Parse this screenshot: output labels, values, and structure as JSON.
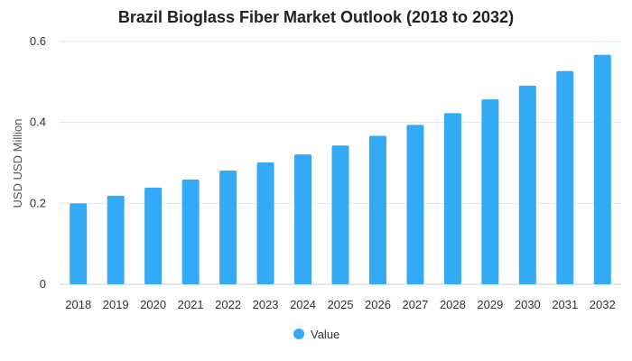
{
  "chart_data": {
    "type": "bar",
    "title": "Brazil Bioglass Fiber Market Outlook (2018 to 2032)",
    "xlabel": "",
    "ylabel": "USD USD Million",
    "categories": [
      "2018",
      "2019",
      "2020",
      "2021",
      "2022",
      "2023",
      "2024",
      "2025",
      "2026",
      "2027",
      "2028",
      "2029",
      "2030",
      "2031",
      "2032"
    ],
    "series": [
      {
        "name": "Value",
        "color": "#33aaf5",
        "values": [
          0.2,
          0.219,
          0.239,
          0.259,
          0.281,
          0.301,
          0.321,
          0.343,
          0.367,
          0.394,
          0.423,
          0.457,
          0.491,
          0.527,
          0.567
        ]
      }
    ],
    "ylim": [
      0,
      0.6
    ],
    "yticks": [
      0,
      0.2,
      0.4,
      0.6
    ],
    "ytick_labels": [
      "0",
      "0.2",
      "0.4",
      "0.6"
    ],
    "grid": true,
    "legend_position": "bottom"
  }
}
